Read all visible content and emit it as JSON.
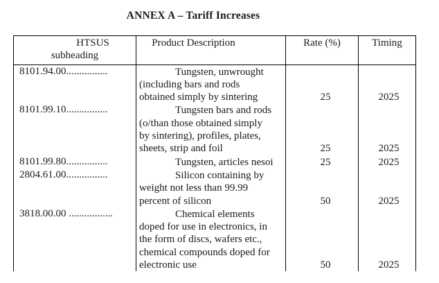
{
  "colors": {
    "background": "#ffffff",
    "text": "#1a1a1a",
    "table_border": "#000000"
  },
  "document": {
    "title": "ANNEX A – Tariff Increases"
  },
  "table": {
    "headers": {
      "subheading": "HTSUS\nsubheading",
      "description": "Product Description",
      "rate": "Rate (%)",
      "timing": "Timing"
    },
    "rows": [
      {
        "subheading": "8101.94.00................",
        "description": "Tungsten, unwrought\n(including bars and rods\nobtained simply by sintering",
        "rate": "25",
        "timing": "2025"
      },
      {
        "subheading": "8101.99.10................",
        "description": "Tungsten bars and rods\n(o/than those obtained simply\nby sintering), profiles, plates,\nsheets, strip and foil",
        "rate": "25",
        "timing": "2025"
      },
      {
        "subheading": "8101.99.80................",
        "description": "Tungsten, articles nesoi",
        "rate": "25",
        "timing": "2025"
      },
      {
        "subheading": "2804.61.00................",
        "description": "Silicon containing by\nweight not less than 99.99\npercent of silicon",
        "rate": "50",
        "timing": "2025"
      },
      {
        "subheading": "3818.00.00 .................",
        "description": "Chemical elements\ndoped for use in electronics, in\nthe form of discs, wafers etc.,\nchemical compounds doped for\nelectronic use",
        "rate": "50",
        "timing": "2025"
      }
    ]
  }
}
